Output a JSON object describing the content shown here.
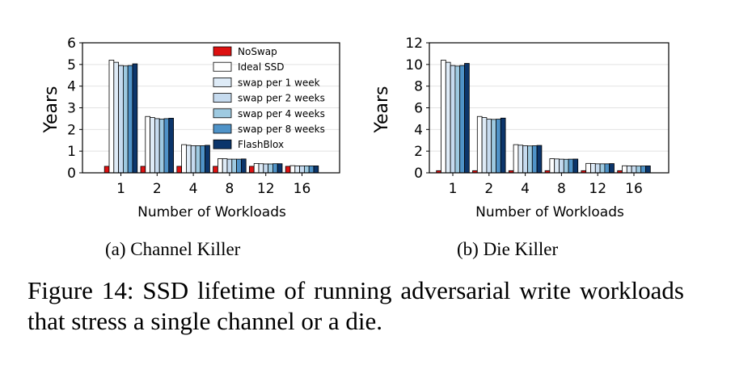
{
  "legend": [
    "NoSwap",
    "Ideal SSD",
    "swap per 1 week",
    "swap per 2 weeks",
    "swap per 4 weeks",
    "swap per 8 weeks",
    "FlashBlox"
  ],
  "colors": [
    "#dd1111",
    "#ffffff",
    "#deebf7",
    "#c6dbef",
    "#9ecae1",
    "#4f93c8",
    "#0b356b"
  ],
  "chart_data": [
    {
      "type": "bar",
      "caption": "(a)  Channel Killer",
      "xlabel": "Number of Workloads",
      "ylabel": "Years",
      "ylim": [
        0,
        6
      ],
      "yticks": [
        "0",
        "1",
        "2",
        "3",
        "4",
        "5",
        "6"
      ],
      "categories": [
        "1",
        "2",
        "4",
        "8",
        "12",
        "16"
      ],
      "legend_position": "top-right",
      "series": [
        {
          "name": "NoSwap",
          "values": [
            0.3,
            0.3,
            0.3,
            0.3,
            0.3,
            0.3
          ]
        },
        {
          "name": "Ideal SSD",
          "values": [
            5.2,
            2.6,
            1.3,
            0.65,
            0.43,
            0.33
          ]
        },
        {
          "name": "swap per 1 week",
          "values": [
            5.1,
            2.55,
            1.27,
            0.65,
            0.42,
            0.32
          ]
        },
        {
          "name": "swap per 2 weeks",
          "values": [
            4.95,
            2.5,
            1.25,
            0.63,
            0.41,
            0.32
          ]
        },
        {
          "name": "swap per 4 weeks",
          "values": [
            4.93,
            2.48,
            1.25,
            0.63,
            0.41,
            0.32
          ]
        },
        {
          "name": "swap per 8 weeks",
          "values": [
            4.95,
            2.5,
            1.25,
            0.63,
            0.42,
            0.32
          ]
        },
        {
          "name": "FlashBlox",
          "values": [
            5.03,
            2.52,
            1.27,
            0.64,
            0.42,
            0.32
          ]
        }
      ]
    },
    {
      "type": "bar",
      "caption": "(b)  Die Killer",
      "xlabel": "Number of Workloads",
      "ylabel": "Years",
      "ylim": [
        0,
        12
      ],
      "yticks": [
        "0",
        "2",
        "4",
        "6",
        "8",
        "10",
        "12"
      ],
      "categories": [
        "1",
        "2",
        "4",
        "8",
        "12",
        "16"
      ],
      "series": [
        {
          "name": "NoSwap",
          "values": [
            0.2,
            0.2,
            0.2,
            0.2,
            0.2,
            0.2
          ]
        },
        {
          "name": "Ideal SSD",
          "values": [
            10.4,
            5.2,
            2.6,
            1.3,
            0.87,
            0.65
          ]
        },
        {
          "name": "swap per 1 week",
          "values": [
            10.2,
            5.1,
            2.55,
            1.28,
            0.85,
            0.64
          ]
        },
        {
          "name": "swap per 2 weeks",
          "values": [
            9.9,
            4.95,
            2.5,
            1.26,
            0.83,
            0.63
          ]
        },
        {
          "name": "swap per 4 weeks",
          "values": [
            9.85,
            4.93,
            2.48,
            1.25,
            0.83,
            0.62
          ]
        },
        {
          "name": "swap per 8 weeks",
          "values": [
            9.9,
            4.95,
            2.5,
            1.26,
            0.83,
            0.63
          ]
        },
        {
          "name": "FlashBlox",
          "values": [
            10.1,
            5.05,
            2.53,
            1.27,
            0.85,
            0.64
          ]
        }
      ]
    }
  ],
  "figure_caption": "Figure 14:  SSD lifetime of running adversarial write workloads that stress a single channel or a die."
}
